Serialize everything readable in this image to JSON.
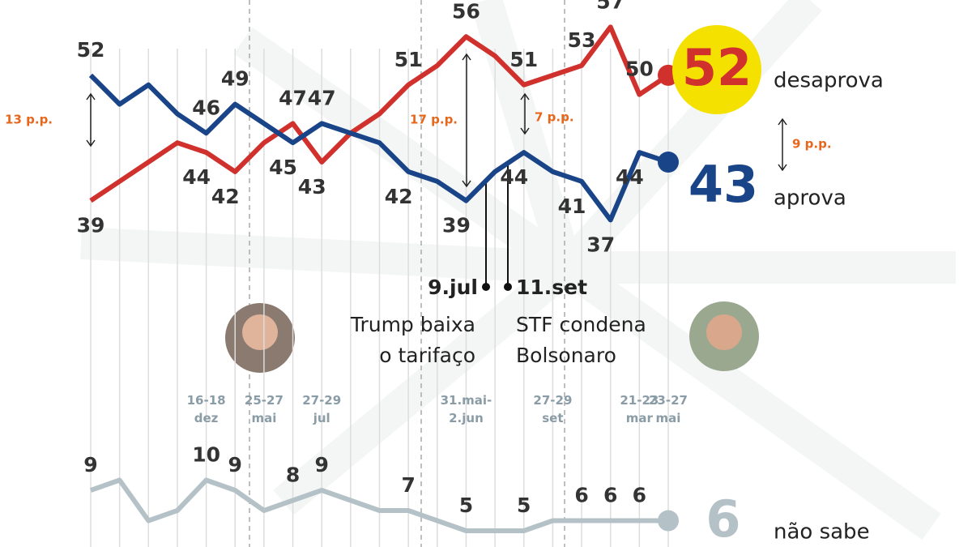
{
  "chart_data": {
    "type": "line",
    "categories": [
      null,
      null,
      null,
      null,
      "16-18 dez",
      null,
      "25-27 mai",
      null,
      "27-29 jul",
      null,
      null,
      null,
      null,
      "31.mai- 2.jun",
      null,
      null,
      "27-29 set",
      null,
      null,
      "21-23 mar",
      "23-27 mai"
    ],
    "ylim": [
      3.1,
      59.8
    ],
    "y2lim": [
      3.4,
      57.4
    ],
    "series": [
      {
        "name": "desaprova",
        "color": "#d0312d",
        "values": [
          39,
          41,
          43,
          45,
          44,
          42,
          45,
          47,
          43,
          46,
          48,
          51,
          53,
          56,
          54,
          51,
          52,
          53,
          57,
          50,
          52
        ],
        "value_labels": [
          "39",
          null,
          null,
          null,
          "44",
          "42",
          null,
          "47",
          "43",
          null,
          null,
          "51",
          null,
          "56",
          null,
          "51",
          null,
          "53",
          "57",
          "50",
          "52"
        ]
      },
      {
        "name": "aprova",
        "color": "#1a4488",
        "values": [
          52,
          49,
          51,
          48,
          46,
          49,
          47,
          45,
          47,
          46,
          45,
          42,
          41,
          39,
          42,
          44,
          42,
          41,
          37,
          44,
          43
        ],
        "value_labels": [
          "52",
          null,
          null,
          null,
          "46",
          "49",
          null,
          "45",
          "47",
          null,
          null,
          "42",
          null,
          "39",
          null,
          "44",
          null,
          "41",
          "37",
          "44",
          "43"
        ]
      },
      {
        "name": "não sabe",
        "color": "#b4c2c8",
        "axis": "y2",
        "values": [
          9,
          10,
          6,
          7,
          10,
          9,
          7,
          8,
          9,
          8,
          7,
          7,
          6,
          5,
          5,
          5,
          6,
          6,
          6,
          6,
          6
        ],
        "value_labels": [
          "9",
          null,
          null,
          null,
          "10",
          "9",
          null,
          "8",
          "9",
          null,
          null,
          "7",
          null,
          "5",
          null,
          "5",
          null,
          "6",
          "6",
          "6",
          "6"
        ]
      }
    ],
    "annotations": [
      "13 p.p.",
      "17 p.p.",
      "7 p.p.",
      "9 p.p."
    ],
    "events": [
      {
        "date": "9.jul",
        "text": [
          "Trump baixa",
          "o tarifaço"
        ]
      },
      {
        "date": "11.set",
        "text": [
          "STF condena",
          "Bolsonaro"
        ]
      }
    ]
  }
}
